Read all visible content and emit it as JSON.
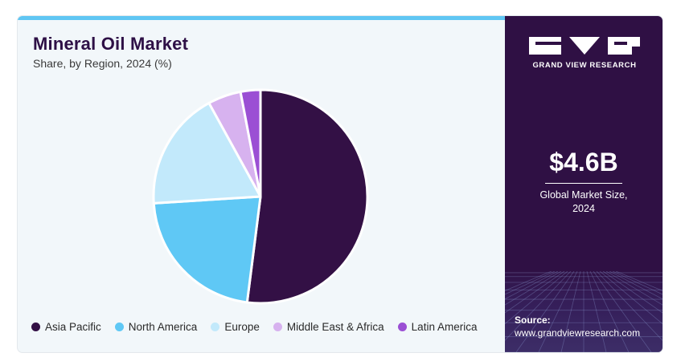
{
  "header": {
    "title": "Mineral Oil Market",
    "subtitle": "Share, by Region, 2024 (%)"
  },
  "chart_data": {
    "type": "pie",
    "categories": [
      "Asia Pacific",
      "North America",
      "Europe",
      "Middle East & Africa",
      "Latin America"
    ],
    "values": [
      52,
      22,
      18,
      5,
      3
    ],
    "colors": [
      "#331045",
      "#5fc8f5",
      "#c2e9fb",
      "#d7b2ef",
      "#9b4fd4"
    ],
    "legend_position": "bottom"
  },
  "sidebar": {
    "brand": "GRAND VIEW RESEARCH",
    "stat_value": "$4.6B",
    "stat_label_line1": "Global Market Size,",
    "stat_label_line2": "2024",
    "source_label": "Source:",
    "source_url": "www.grandviewresearch.com"
  }
}
